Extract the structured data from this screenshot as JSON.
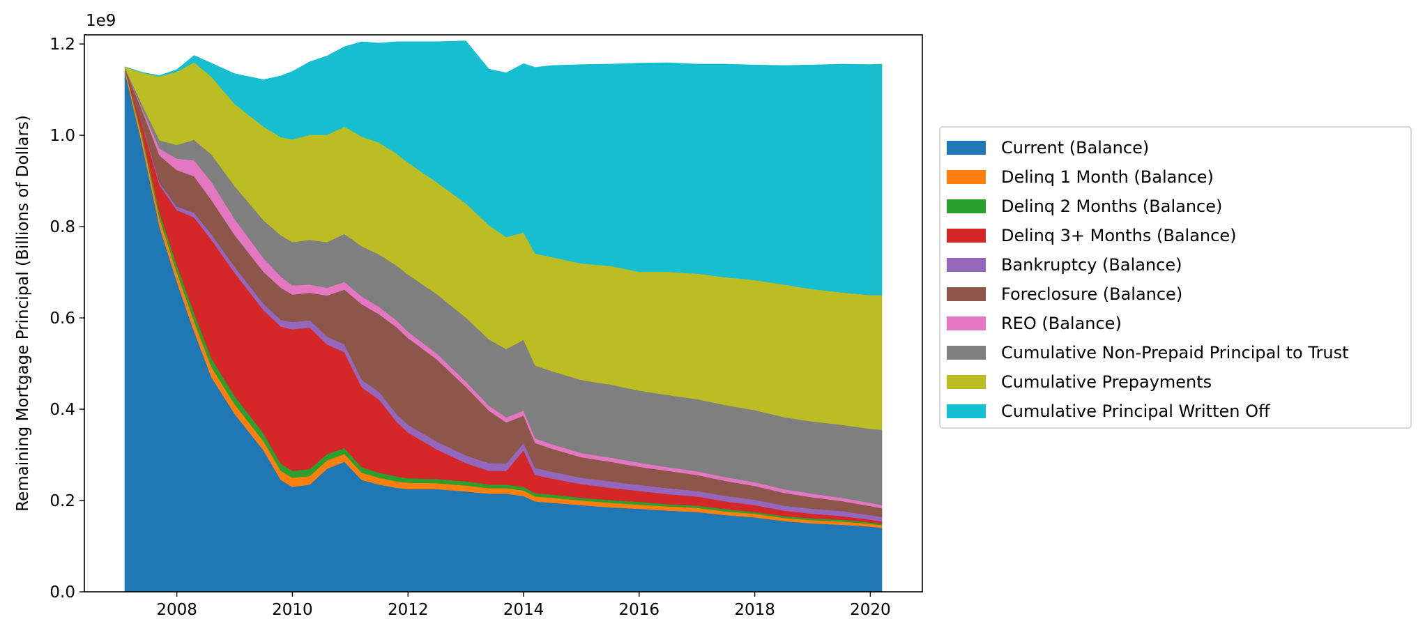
{
  "chart_data": {
    "type": "area",
    "stacked": true,
    "title": "",
    "xlabel": "",
    "ylabel": "Remaining Mortgage Principal (Billions of Dollars)",
    "offset_text": "1e9",
    "xlim": [
      2006.4,
      2020.9
    ],
    "ylim": [
      0,
      1.22
    ],
    "x_ticks": [
      2008,
      2010,
      2012,
      2014,
      2016,
      2018,
      2020
    ],
    "y_ticks": [
      0.0,
      0.2,
      0.4,
      0.6,
      0.8,
      1.0,
      1.2
    ],
    "y_tick_labels": [
      "0.0",
      "0.2",
      "0.4",
      "0.6",
      "0.8",
      "1.0",
      "1.2"
    ],
    "grid": false,
    "legend_position": "outside-right",
    "x": [
      2007.1,
      2007.4,
      2007.7,
      2008.0,
      2008.3,
      2008.6,
      2009.0,
      2009.5,
      2009.8,
      2010.0,
      2010.3,
      2010.6,
      2010.9,
      2011.2,
      2011.5,
      2011.8,
      2012.0,
      2012.5,
      2013.0,
      2013.4,
      2013.7,
      2014.0,
      2014.2,
      2014.5,
      2015.0,
      2015.5,
      2016.0,
      2016.5,
      2017.0,
      2017.5,
      2018.0,
      2018.5,
      2019.0,
      2019.5,
      2020.0,
      2020.2
    ],
    "series": [
      {
        "name": "Current (Balance)",
        "color": "#1f77b4",
        "values": [
          1.14,
          0.98,
          0.8,
          0.68,
          0.57,
          0.47,
          0.39,
          0.31,
          0.245,
          0.23,
          0.235,
          0.27,
          0.285,
          0.245,
          0.235,
          0.228,
          0.225,
          0.225,
          0.22,
          0.215,
          0.215,
          0.21,
          0.198,
          0.195,
          0.19,
          0.185,
          0.182,
          0.178,
          0.175,
          0.168,
          0.163,
          0.155,
          0.15,
          0.147,
          0.143,
          0.14
        ]
      },
      {
        "name": "Delinq 1 Month (Balance)",
        "color": "#ff7f0e",
        "values": [
          0.006,
          0.015,
          0.018,
          0.02,
          0.022,
          0.022,
          0.021,
          0.02,
          0.02,
          0.02,
          0.019,
          0.018,
          0.017,
          0.016,
          0.015,
          0.014,
          0.014,
          0.013,
          0.013,
          0.012,
          0.012,
          0.012,
          0.011,
          0.011,
          0.01,
          0.01,
          0.009,
          0.009,
          0.009,
          0.008,
          0.008,
          0.007,
          0.007,
          0.007,
          0.006,
          0.006
        ]
      },
      {
        "name": "Delinq 2 Months (Balance)",
        "color": "#2ca02c",
        "values": [
          0.002,
          0.008,
          0.013,
          0.016,
          0.018,
          0.019,
          0.018,
          0.017,
          0.016,
          0.015,
          0.015,
          0.014,
          0.013,
          0.012,
          0.011,
          0.011,
          0.01,
          0.009,
          0.009,
          0.008,
          0.008,
          0.008,
          0.007,
          0.007,
          0.006,
          0.006,
          0.006,
          0.005,
          0.005,
          0.005,
          0.004,
          0.004,
          0.004,
          0.004,
          0.003,
          0.003
        ]
      },
      {
        "name": "Delinq 3+ Months (Balance)",
        "color": "#d62728",
        "values": [
          0.0,
          0.02,
          0.06,
          0.12,
          0.21,
          0.26,
          0.27,
          0.27,
          0.3,
          0.31,
          0.31,
          0.24,
          0.21,
          0.175,
          0.16,
          0.12,
          0.1,
          0.065,
          0.04,
          0.03,
          0.03,
          0.08,
          0.04,
          0.035,
          0.03,
          0.027,
          0.024,
          0.022,
          0.02,
          0.017,
          0.015,
          0.012,
          0.01,
          0.008,
          0.006,
          0.005
        ]
      },
      {
        "name": "Bankruptcy (Balance)",
        "color": "#9467bd",
        "values": [
          0.0,
          0.002,
          0.005,
          0.008,
          0.01,
          0.012,
          0.013,
          0.014,
          0.015,
          0.016,
          0.016,
          0.017,
          0.017,
          0.017,
          0.017,
          0.017,
          0.017,
          0.017,
          0.017,
          0.017,
          0.016,
          0.016,
          0.015,
          0.015,
          0.014,
          0.014,
          0.013,
          0.013,
          0.012,
          0.012,
          0.012,
          0.011,
          0.011,
          0.011,
          0.01,
          0.01
        ]
      },
      {
        "name": "Foreclosure (Balance)",
        "color": "#8c564b",
        "values": [
          0.0,
          0.03,
          0.06,
          0.08,
          0.08,
          0.075,
          0.07,
          0.07,
          0.07,
          0.06,
          0.06,
          0.09,
          0.12,
          0.165,
          0.17,
          0.19,
          0.19,
          0.18,
          0.15,
          0.115,
          0.09,
          0.06,
          0.055,
          0.05,
          0.045,
          0.043,
          0.04,
          0.038,
          0.035,
          0.033,
          0.03,
          0.028,
          0.025,
          0.022,
          0.02,
          0.019
        ]
      },
      {
        "name": "REO (Balance)",
        "color": "#e377c2",
        "values": [
          0.0,
          0.004,
          0.015,
          0.025,
          0.035,
          0.04,
          0.035,
          0.03,
          0.025,
          0.02,
          0.018,
          0.017,
          0.017,
          0.017,
          0.016,
          0.015,
          0.014,
          0.013,
          0.012,
          0.011,
          0.011,
          0.011,
          0.01,
          0.01,
          0.009,
          0.009,
          0.009,
          0.008,
          0.008,
          0.008,
          0.008,
          0.008,
          0.008,
          0.007,
          0.007,
          0.007
        ]
      },
      {
        "name": "Cumulative Non-Prepaid Principal to Trust",
        "color": "#7f7f7f",
        "values": [
          0.0,
          0.008,
          0.018,
          0.03,
          0.045,
          0.06,
          0.072,
          0.083,
          0.09,
          0.095,
          0.098,
          0.1,
          0.105,
          0.11,
          0.115,
          0.12,
          0.125,
          0.13,
          0.14,
          0.145,
          0.15,
          0.155,
          0.16,
          0.16,
          0.16,
          0.16,
          0.158,
          0.158,
          0.158,
          0.158,
          0.158,
          0.158,
          0.158,
          0.16,
          0.162,
          0.165
        ]
      },
      {
        "name": "Cumulative Prepayments",
        "color": "#bcbd22",
        "values": [
          0.002,
          0.07,
          0.14,
          0.16,
          0.17,
          0.17,
          0.18,
          0.205,
          0.215,
          0.225,
          0.23,
          0.235,
          0.235,
          0.24,
          0.245,
          0.245,
          0.245,
          0.245,
          0.25,
          0.25,
          0.245,
          0.235,
          0.245,
          0.25,
          0.255,
          0.26,
          0.26,
          0.27,
          0.275,
          0.28,
          0.285,
          0.29,
          0.29,
          0.29,
          0.293,
          0.295
        ]
      },
      {
        "name": "Cumulative Principal Written Off",
        "color": "#17becf",
        "values": [
          0.0,
          0.001,
          0.002,
          0.005,
          0.015,
          0.03,
          0.066,
          0.103,
          0.134,
          0.149,
          0.16,
          0.173,
          0.175,
          0.208,
          0.218,
          0.245,
          0.265,
          0.308,
          0.356,
          0.342,
          0.36,
          0.37,
          0.408,
          0.42,
          0.436,
          0.442,
          0.457,
          0.458,
          0.459,
          0.467,
          0.471,
          0.48,
          0.491,
          0.5,
          0.505,
          0.506
        ]
      }
    ]
  }
}
